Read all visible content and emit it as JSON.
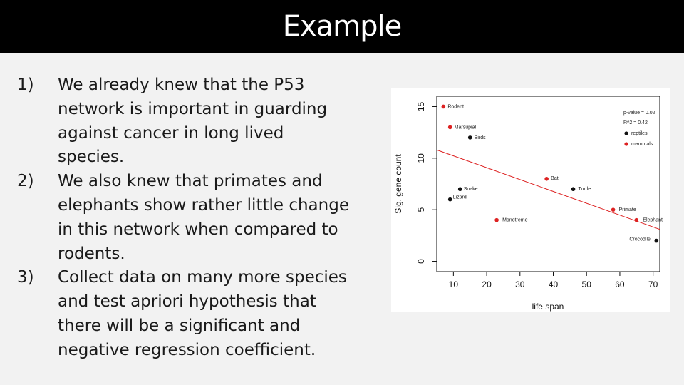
{
  "title": "Example",
  "items": [
    {
      "number": "1)",
      "text": "We already knew that the P53 network is important in guarding against cancer in long lived species."
    },
    {
      "number": "2)",
      "text": "We also knew that primates and elephants show rather little change in this network when compared to rodents."
    },
    {
      "number": "3)",
      "text": "Collect data on many more species and test apriori hypothesis that there will be a significant and negative regression coefficient."
    }
  ],
  "chart_data": {
    "type": "scatter",
    "xlabel": "life span",
    "ylabel": "Sig. gene count",
    "xlim": [
      5,
      72
    ],
    "ylim": [
      -1,
      16
    ],
    "x_ticks": [
      10,
      20,
      30,
      40,
      50,
      60,
      70
    ],
    "y_ticks": [
      0,
      5,
      10,
      15
    ],
    "grid": false,
    "legend_position": "top-right",
    "annotations": [
      "p-value = 0.02",
      "R^2 = 0.42"
    ],
    "series": [
      {
        "name": "reptiles",
        "color": "#111111",
        "points": [
          {
            "label": "Birds",
            "x": 15,
            "y": 12
          },
          {
            "label": "Snake",
            "x": 12,
            "y": 7
          },
          {
            "label": "Lizard",
            "x": 9,
            "y": 6
          },
          {
            "label": "Turtle",
            "x": 46,
            "y": 7
          },
          {
            "label": "Crocodile",
            "x": 71,
            "y": 2
          }
        ]
      },
      {
        "name": "mammals",
        "color": "#dd2222",
        "points": [
          {
            "label": "Rodent",
            "x": 7,
            "y": 15
          },
          {
            "label": "Marsupial",
            "x": 9,
            "y": 13
          },
          {
            "label": "Bat",
            "x": 38,
            "y": 8
          },
          {
            "label": "Primate",
            "x": 58,
            "y": 5
          },
          {
            "label": "Monotreme",
            "x": 23,
            "y": 4
          },
          {
            "label": "Elephant",
            "x": 65,
            "y": 4
          }
        ]
      }
    ],
    "regression_line": {
      "color": "#dd2222",
      "x": [
        5,
        72
      ],
      "y": [
        10.8,
        3.1
      ]
    }
  }
}
